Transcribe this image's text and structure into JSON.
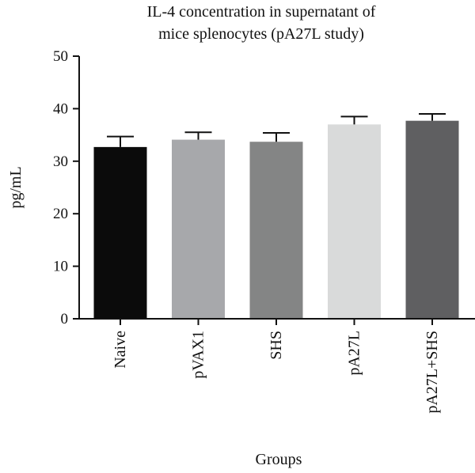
{
  "chart_data": {
    "type": "bar",
    "title_lines": [
      "IL-4 concentration in supernatant of",
      "mice splenocytes (pA27L study)"
    ],
    "xlabel": "Groups",
    "ylabel": "pg/mL",
    "ylim": [
      0,
      50
    ],
    "yticks": [
      0,
      10,
      20,
      30,
      40,
      50
    ],
    "categories": [
      "Naive",
      "pVAX1",
      "SHS",
      "pA27L",
      "pA27L+SHS"
    ],
    "values": [
      32.7,
      34.1,
      33.7,
      37.0,
      37.7
    ],
    "errors": [
      2.0,
      1.4,
      1.7,
      1.5,
      1.3
    ],
    "bar_colors": [
      "#0b0b0b",
      "#a7a8ab",
      "#848585",
      "#d9dada",
      "#5f5f61"
    ],
    "error_bars": "upper"
  }
}
